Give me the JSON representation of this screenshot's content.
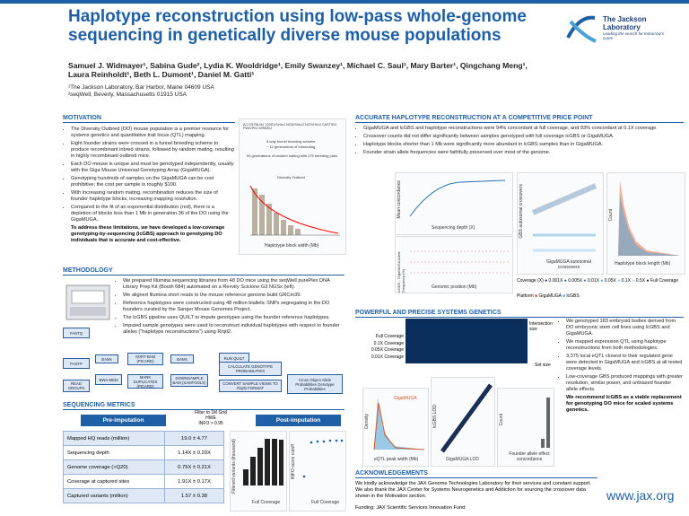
{
  "header": {
    "title": "Haplotype reconstruction using low-pass whole-genome sequencing in genetically diverse mouse populations",
    "authors": "Samuel J. Widmayer¹, Sabina Gude², Lydia K. Wooldridge¹, Emily Swanzey¹, Michael C. Saul¹, Mary Barter¹, Qingchang Meng¹, Laura Reinholdt¹, Beth L. Dumont¹, Daniel M. Gatti¹",
    "affiliations": [
      "¹The Jackson Laboratory, Bar Harbor, Maine 04609 USA",
      "²seqWell, Beverly, Massachusetts 01915 USA"
    ],
    "logo": {
      "line1": "The Jackson",
      "line2": "Laboratory",
      "tagline": "Leading the search for tomorrow's cures"
    }
  },
  "motivation": {
    "heading": "MOTIVATION",
    "bullets": [
      "The Diversity Outbred (DO) mouse population is a premier resource for systems genetics and quantitative trait locus (QTL) mapping.",
      "Eight founder strains were crossed in a funnel breeding scheme to produce recombinant inbred strains, followed by random mating, resulting in highly recombinant outbred mice.",
      "Each DO mouse is unique and must be genotyped independently, usually with the Giga Mouse Universal Genotyping Array (GigaMUGA).",
      "Genotyping hundreds of samples on the GigaMUGA can be cost prohibitive; the cost per sample is roughly $100.",
      "With increasing random mating, recombination reduces the size of founder haplotype blocks, increasing mapping resolution.",
      "Compared to the fit of an exponential distribution (red), there is a depletion of blocks less than 1 Mb in generation 36 of the DO using the GigaMUGA."
    ],
    "bold": "To address these limitations, we have developed a low-coverage genotyping-by-sequencing (lcGBS) approach to genotyping DO individuals that is accurate and cost-effective.",
    "figure": {
      "founders": "A/J  C57BL/6J  129S1/SvImJ  NOD/ShiLtJ  NZO/HlLtJ  CAST/EiJ  PWK/PhJ  WSB/EiJ",
      "step1": "8-way funnel breeding scheme",
      "step2": "~ 12 generations of inbreeding",
      "step3": "50 generations of random mating with 175 breeding pairs",
      "outcome": "Diversity Outbred",
      "xlabel": "Haplotype block width (Mb)"
    }
  },
  "methodology": {
    "heading": "METHODOLOGY",
    "bullets": [
      "We prepared Illumina sequencing libraries from 48 DO mice using the seqWell purePlex DNA Library Prep Kit (Booth 684) automated on a Revvity Sciclone G3 NGSx (left).",
      "We aligned Illumina short reads to the mouse reference genome build GRCm39.",
      "Reference haplotypes were constructed using 48 million biallelic SNPs segregating in the DO founders curated by the Sanger Mouse Genomes Project.",
      "The lcGBS pipeline uses QUILT to impute genotypes using the founder reference haplotypes.",
      "Imputed sample genotypes were used to reconstruct individual haplotypes with respect to founder alleles (\"haplotype reconstructions\") using R/qtl2."
    ],
    "flow": [
      "FASTQ",
      "FASTP",
      "READ GROUPS",
      "BWA-MEM",
      "BAMs",
      "SORT BAM (PICARD)",
      "MARK DUPLICATES (PICARD)",
      "BAMs",
      "DOWNSAMPLE BAM (SAMTOOLS)",
      "RUN QUILT",
      "CALCULATE GENOTYPE PROBABILITIES",
      "CONVERT SAMPLE VIEWS TO R/qtl2 FORMAT",
      "Cross Object Allele Probabilities Genotype Probabilities"
    ]
  },
  "metrics": {
    "heading": "SEQUENCING METRICS",
    "pre": "Pre-imputation",
    "filter": [
      "Filter to 1M Grid",
      "HWE",
      "INFO > 0.95"
    ],
    "post": "Post-imputation",
    "table": {
      "rows": [
        [
          "Mapped HQ reads (million)",
          "19.0 ± 4.77"
        ],
        [
          "Sequencing depth",
          "1.14X ± 0.29X"
        ],
        [
          "Genome coverage (>Q20)",
          "0.75X ± 0.21X"
        ],
        [
          "Coverage at captured sites",
          "1.91X ± 0.17X"
        ],
        [
          "Captured variants (million)",
          "1.57 ± 0.38"
        ]
      ]
    },
    "chart1_ylabel": "Filtered variants (thousand)",
    "chart2_ylabel": "INFO score cutoff",
    "chart_xlabel": "Full Coverage"
  },
  "accurate": {
    "heading": "ACCURATE HAPLOTYPE RECONSTRUCTION AT A COMPETITIVE PRICE POINT",
    "bullets": [
      "GigaMUGA and lcGBS and haplotype reconstructions were 94% concordant at full coverage, and 93% concordant at 0.1X coverage.",
      "Crossover counts did not differ significantly between samples genotyped with full coverage lcGBS or GigaMUGA.",
      "Haplotype blocks shorter than 1 Mb were significantly more abundant in lcGBS samples than in GigaMUGA.",
      "Founder strain allele frequencies were faithfully preserved over most of the genome."
    ],
    "fig1": {
      "ylabel": "Mean concordance",
      "xlabel": "Sequencing depth (X)"
    },
    "fig2": {
      "ylabel": "lcGBS - GigaMUGA Allele Frequency (%)",
      "xlabel": "Genomic position (Mb)"
    },
    "fig3": {
      "ylabel": "GBS autosomal crossovers",
      "xlabel": "GigaMUGA autosomal crossovers"
    },
    "fig4": {
      "ylabel": "Count",
      "xlabel": "Haplotype block length (Mb)"
    },
    "legend_coverage": "Coverage (X)",
    "coverage_levels": [
      "0.001X",
      "0.005X",
      "0.01X",
      "0.05X",
      "0.1X",
      "0.5X",
      "Full Coverage"
    ],
    "legend_platform": "Platform",
    "platforms": [
      "GigaMUGA",
      "lcGBS"
    ]
  },
  "powerful": {
    "heading": "POWERFUL AND PRECISE SYSTEMS GENETICS",
    "sets": [
      "Full Coverage",
      "0.1X Coverage",
      "0.05X Coverage",
      "0.01X Coverage"
    ],
    "upset_right": "Intersection size",
    "upset_set": "Set size",
    "bullets": [
      "We genotyped 183 embryoid bodies derived from DO embryonic stem cell lines using lcGBS and GigaMUGA.",
      "We mapped expression QTL using haplotype reconstructions from both methodologies.",
      "3,375 local eQTL closest to their regulated gene were detected in GigaMUGA and lcGBS at all tested coverage levels.",
      "Low-coverage GBS produced mappings with greater resolution, similar power, and unbiased founder allele effects."
    ],
    "bold": "We recommend lcGBS as a viable replacement for genotyping DO mice for scaled systems genetics.",
    "fig1": {
      "ylabel": "Density",
      "xlabel": "eQTL peak width (Mb)",
      "legend": "GigaMUGA"
    },
    "fig2": {
      "ylabel": "lcGBS LOD",
      "xlabel": "GigaMUGA LOD"
    },
    "fig3": {
      "ylabel": "Count",
      "xlabel": "Founder allele effect concordance"
    }
  },
  "ack": {
    "heading": "ACKNOWLEDGEMENTS",
    "text": "We kindly acknowledge the JAX Genome Technologies Laboratory for their services and constant support. We also thank the JAX Center for Systems Neurogenetics and Addiction for sourcing the crossover data shown in the Motivation section.",
    "funding": "Funding: JAX Scientific Services Innovation Fund"
  },
  "url": "www.jax.org"
}
